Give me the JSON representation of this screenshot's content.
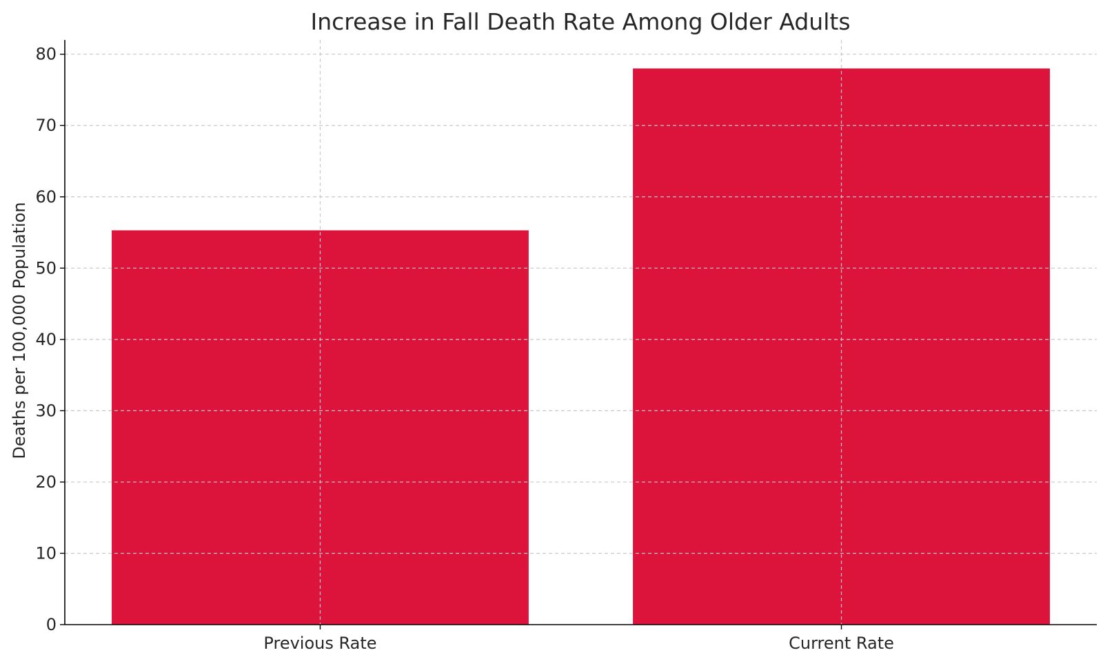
{
  "chart_data": {
    "type": "bar",
    "title": "Increase in Fall Death Rate Among Older Adults",
    "xlabel": "",
    "ylabel": "Deaths per 100,000 Population",
    "categories": [
      "Previous Rate",
      "Current Rate"
    ],
    "values": [
      55.3,
      78
    ],
    "ylim": [
      0,
      82
    ],
    "yticks": [
      0,
      10,
      20,
      30,
      40,
      50,
      60,
      70,
      80
    ],
    "grid": true,
    "legend": "none",
    "bar_color": "#dc143c"
  }
}
